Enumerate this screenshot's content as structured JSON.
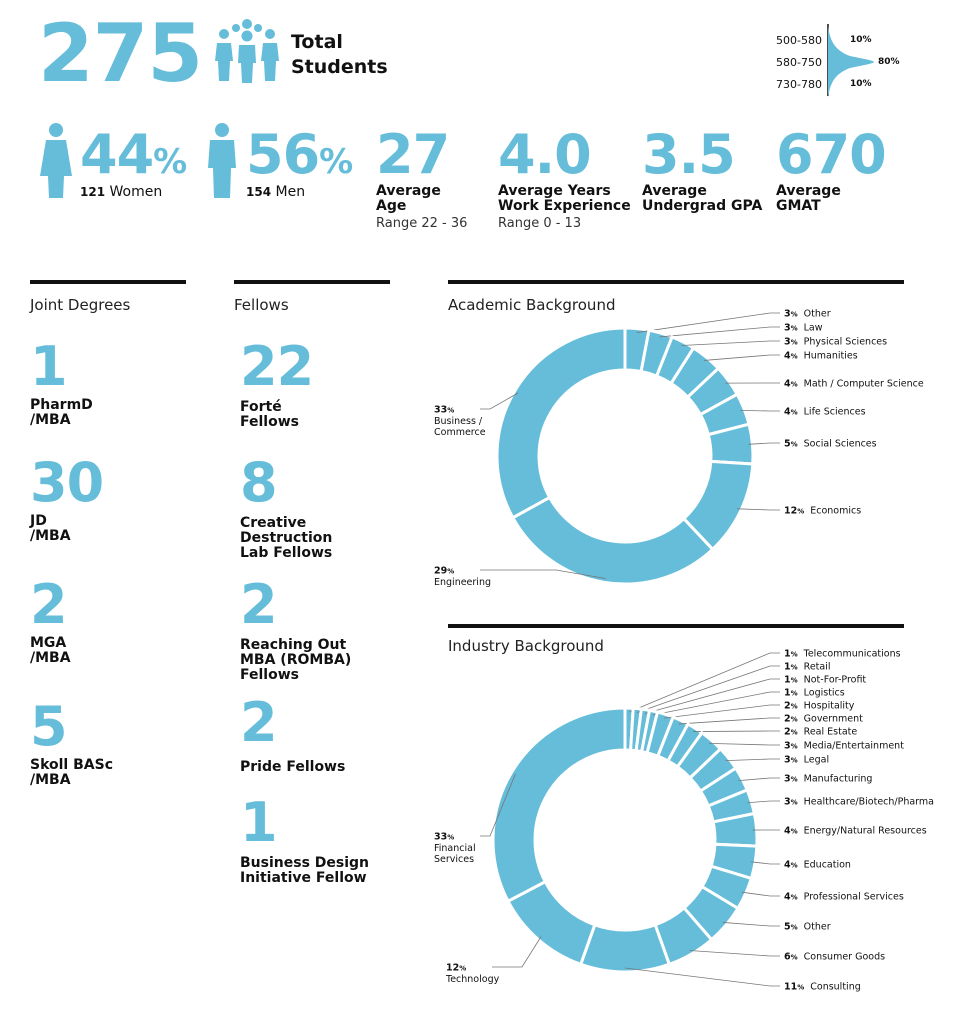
{
  "colors": {
    "accent": "#65BDDA",
    "text": "#111111"
  },
  "header": {
    "total": "275",
    "total_label_1": "Total",
    "total_label_2": "Students",
    "icon": "people-group-icon"
  },
  "gmat_dist": {
    "rows": [
      {
        "range": "500-580",
        "pct": "10%"
      },
      {
        "range": "580-750",
        "pct": "80%"
      },
      {
        "range": "730-780",
        "pct": "10%"
      }
    ]
  },
  "stats": {
    "women": {
      "pct": "44",
      "pct_sign": "%",
      "count": "121",
      "label": "Women",
      "icon": "woman-icon"
    },
    "men": {
      "pct": "56",
      "pct_sign": "%",
      "count": "154",
      "label": "Men",
      "icon": "man-icon"
    },
    "age": {
      "value": "27",
      "label1": "Average",
      "label2": "Age",
      "range": "Range 22 - 36"
    },
    "work": {
      "value": "4.0",
      "label1": "Average Years",
      "label2": "Work Experience",
      "range": "Range 0 - 13"
    },
    "gpa": {
      "value": "3.5",
      "label1": "Average",
      "label2": "Undergrad GPA"
    },
    "gmat": {
      "value": "670",
      "label1": "Average",
      "label2": "GMAT"
    }
  },
  "joint": {
    "title": "Joint Degrees",
    "items": [
      {
        "value": "1",
        "l1": "PharmD",
        "l2": "/MBA"
      },
      {
        "value": "30",
        "l1": "JD",
        "l2": "/MBA"
      },
      {
        "value": "2",
        "l1": "MGA",
        "l2": "/MBA"
      },
      {
        "value": "5",
        "l1": "Skoll BASc",
        "l2": "/MBA"
      }
    ]
  },
  "fellows": {
    "title": "Fellows",
    "items": [
      {
        "value": "22",
        "lines": [
          "Forté",
          "Fellows"
        ]
      },
      {
        "value": "8",
        "lines": [
          "Creative",
          "Destruction",
          "Lab Fellows"
        ]
      },
      {
        "value": "2",
        "lines": [
          "Reaching Out",
          "MBA (ROMBA)",
          "Fellows"
        ]
      },
      {
        "value": "2",
        "lines": [
          "Pride Fellows"
        ]
      },
      {
        "value": "1",
        "lines": [
          "Business Design",
          "Initiative Fellow"
        ]
      }
    ]
  },
  "chart_data": [
    {
      "type": "pie",
      "title": "Academic Background",
      "donut": true,
      "slices": [
        {
          "label": "Other",
          "value": 3
        },
        {
          "label": "Law",
          "value": 3
        },
        {
          "label": "Physical Sciences",
          "value": 3
        },
        {
          "label": "Humanities",
          "value": 4
        },
        {
          "label": "Math / Computer Science",
          "value": 4
        },
        {
          "label": "Life Sciences",
          "value": 4
        },
        {
          "label": "Social Sciences",
          "value": 5
        },
        {
          "label": "Economics",
          "value": 12
        },
        {
          "label": "Engineering",
          "value": 29
        },
        {
          "label": "Business / Commerce",
          "value": 33
        }
      ]
    },
    {
      "type": "pie",
      "title": "Industry Background",
      "donut": true,
      "slices": [
        {
          "label": "Telecommunications",
          "value": 1
        },
        {
          "label": "Retail",
          "value": 1
        },
        {
          "label": "Not-For-Profit",
          "value": 1
        },
        {
          "label": "Logistics",
          "value": 1
        },
        {
          "label": "Hospitality",
          "value": 2
        },
        {
          "label": "Government",
          "value": 2
        },
        {
          "label": "Real Estate",
          "value": 2
        },
        {
          "label": "Media/Entertainment",
          "value": 3
        },
        {
          "label": "Legal",
          "value": 3
        },
        {
          "label": "Manufacturing",
          "value": 3
        },
        {
          "label": "Healthcare/Biotech/Pharma",
          "value": 3
        },
        {
          "label": "Energy/Natural Resources",
          "value": 4
        },
        {
          "label": "Education",
          "value": 4
        },
        {
          "label": "Professional Services",
          "value": 4
        },
        {
          "label": "Other",
          "value": 5
        },
        {
          "label": "Consumer Goods",
          "value": 6
        },
        {
          "label": "Consulting",
          "value": 11
        },
        {
          "label": "Technology",
          "value": 12
        },
        {
          "label": "Financial Services",
          "value": 33
        }
      ]
    }
  ]
}
